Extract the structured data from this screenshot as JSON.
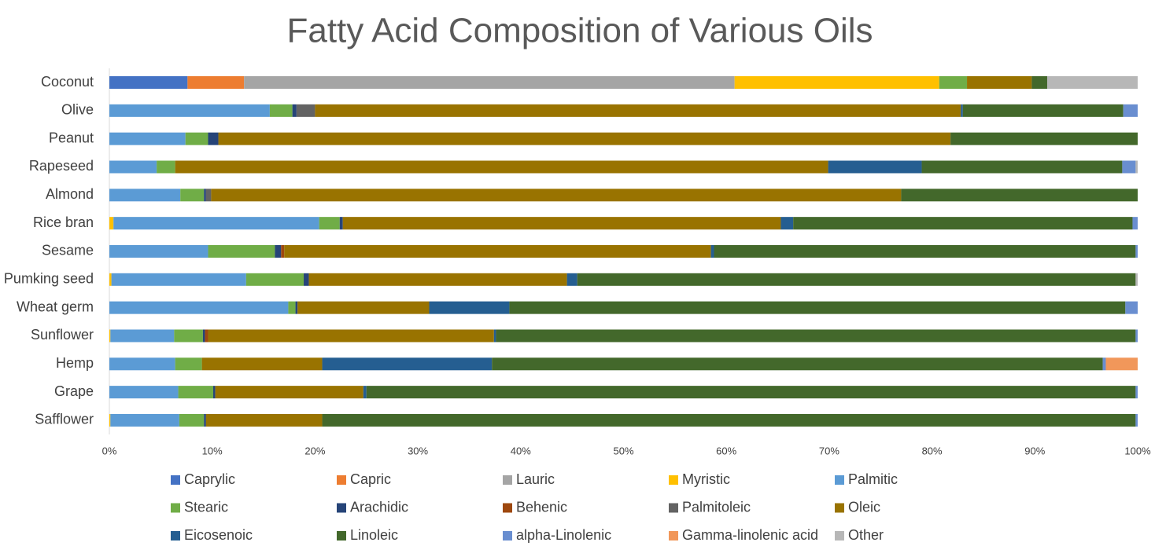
{
  "chart_data": {
    "type": "stacked-bar-horizontal",
    "title": "Fatty Acid Composition of Various Oils",
    "categories": [
      "Coconut",
      "Olive",
      "Peanut",
      "Rapeseed",
      "Almond",
      "Rice bran",
      "Sesame",
      "Pumking seed",
      "Wheat germ",
      "Sunflower",
      "Hemp",
      "Grape",
      "Safflower"
    ],
    "xlim": [
      0,
      100
    ],
    "xticks": [
      {
        "value": 0,
        "label": "0%"
      },
      {
        "value": 10,
        "label": "10%"
      },
      {
        "value": 20,
        "label": "20%"
      },
      {
        "value": 30,
        "label": "30%"
      },
      {
        "value": 40,
        "label": "40%"
      },
      {
        "value": 50,
        "label": "50%"
      },
      {
        "value": 60,
        "label": "60%"
      },
      {
        "value": 70,
        "label": "70%"
      },
      {
        "value": 80,
        "label": "80%"
      },
      {
        "value": 90,
        "label": "90%"
      },
      {
        "value": 100,
        "label": "100%"
      }
    ],
    "legend": "bottom",
    "series": [
      {
        "name": "Caprylic",
        "color": "#4472c4",
        "values": [
          7.6,
          0,
          0,
          0,
          0,
          0,
          0,
          0,
          0,
          0,
          0,
          0,
          0
        ]
      },
      {
        "name": "Capric",
        "color": "#ed7d31",
        "values": [
          5.5,
          0,
          0,
          0,
          0,
          0,
          0,
          0,
          0,
          0,
          0,
          0,
          0
        ]
      },
      {
        "name": "Lauric",
        "color": "#a5a5a5",
        "values": [
          47.7,
          0,
          0,
          0,
          0,
          0,
          0,
          0,
          0,
          0,
          0,
          0,
          0
        ]
      },
      {
        "name": "Myristic",
        "color": "#ffc000",
        "values": [
          19.9,
          0,
          0,
          0,
          0,
          0.4,
          0,
          0.2,
          0,
          0.1,
          0,
          0,
          0.1
        ]
      },
      {
        "name": "Palmitic",
        "color": "#5b9bd5",
        "values": [
          0,
          15.6,
          7.4,
          4.6,
          6.9,
          20.0,
          9.6,
          13.1,
          17.4,
          6.2,
          6.4,
          6.7,
          6.7
        ]
      },
      {
        "name": "Stearic",
        "color": "#70ad47",
        "values": [
          2.7,
          2.2,
          2.2,
          1.8,
          2.3,
          2.0,
          6.5,
          5.6,
          0.7,
          2.8,
          2.6,
          3.4,
          2.4
        ]
      },
      {
        "name": "Arachidic",
        "color": "#264478",
        "values": [
          0,
          0.4,
          1.0,
          0,
          0.2,
          0.3,
          0.6,
          0.5,
          0.2,
          0.2,
          0,
          0.2,
          0.2
        ]
      },
      {
        "name": "Behenic",
        "color": "#9e480e",
        "values": [
          0,
          0,
          0,
          0,
          0,
          0,
          0.3,
          0,
          0,
          0.3,
          0,
          0,
          0
        ]
      },
      {
        "name": "Palmitoleic",
        "color": "#636363",
        "values": [
          0,
          1.8,
          0,
          0,
          0.5,
          0,
          0,
          0,
          0,
          0,
          0,
          0,
          0
        ]
      },
      {
        "name": "Oleic",
        "color": "#997300",
        "values": [
          6.3,
          62.8,
          71.2,
          63.5,
          67.1,
          42.6,
          41.5,
          25.1,
          12.8,
          27.8,
          11.7,
          14.4,
          11.3
        ]
      },
      {
        "name": "Eicosenoic",
        "color": "#255e91",
        "values": [
          0,
          0.2,
          0,
          9.1,
          0,
          1.2,
          0.3,
          1.0,
          7.8,
          0.2,
          16.5,
          0.3,
          0
        ]
      },
      {
        "name": "Linoleic",
        "color": "#43682b",
        "values": [
          1.5,
          15.6,
          18.2,
          19.5,
          23.0,
          33.0,
          41.0,
          54.3,
          59.9,
          62.2,
          59.4,
          74.8,
          79.1
        ]
      },
      {
        "name": "alpha-Linolenic",
        "color": "#698ed0",
        "values": [
          0,
          1.4,
          0,
          1.3,
          0,
          0.5,
          0.2,
          0,
          1.2,
          0.2,
          0.3,
          0.2,
          0.2
        ]
      },
      {
        "name": "Gamma-linolenic acid",
        "color": "#f1975a",
        "values": [
          0,
          0,
          0,
          0,
          0,
          0,
          0,
          0,
          0,
          0,
          3.1,
          0,
          0
        ]
      },
      {
        "name": "Other",
        "color": "#b7b7b7",
        "values": [
          8.8,
          0,
          0,
          0.2,
          0,
          0,
          0,
          0.2,
          0,
          0,
          0,
          0,
          0
        ]
      }
    ]
  }
}
